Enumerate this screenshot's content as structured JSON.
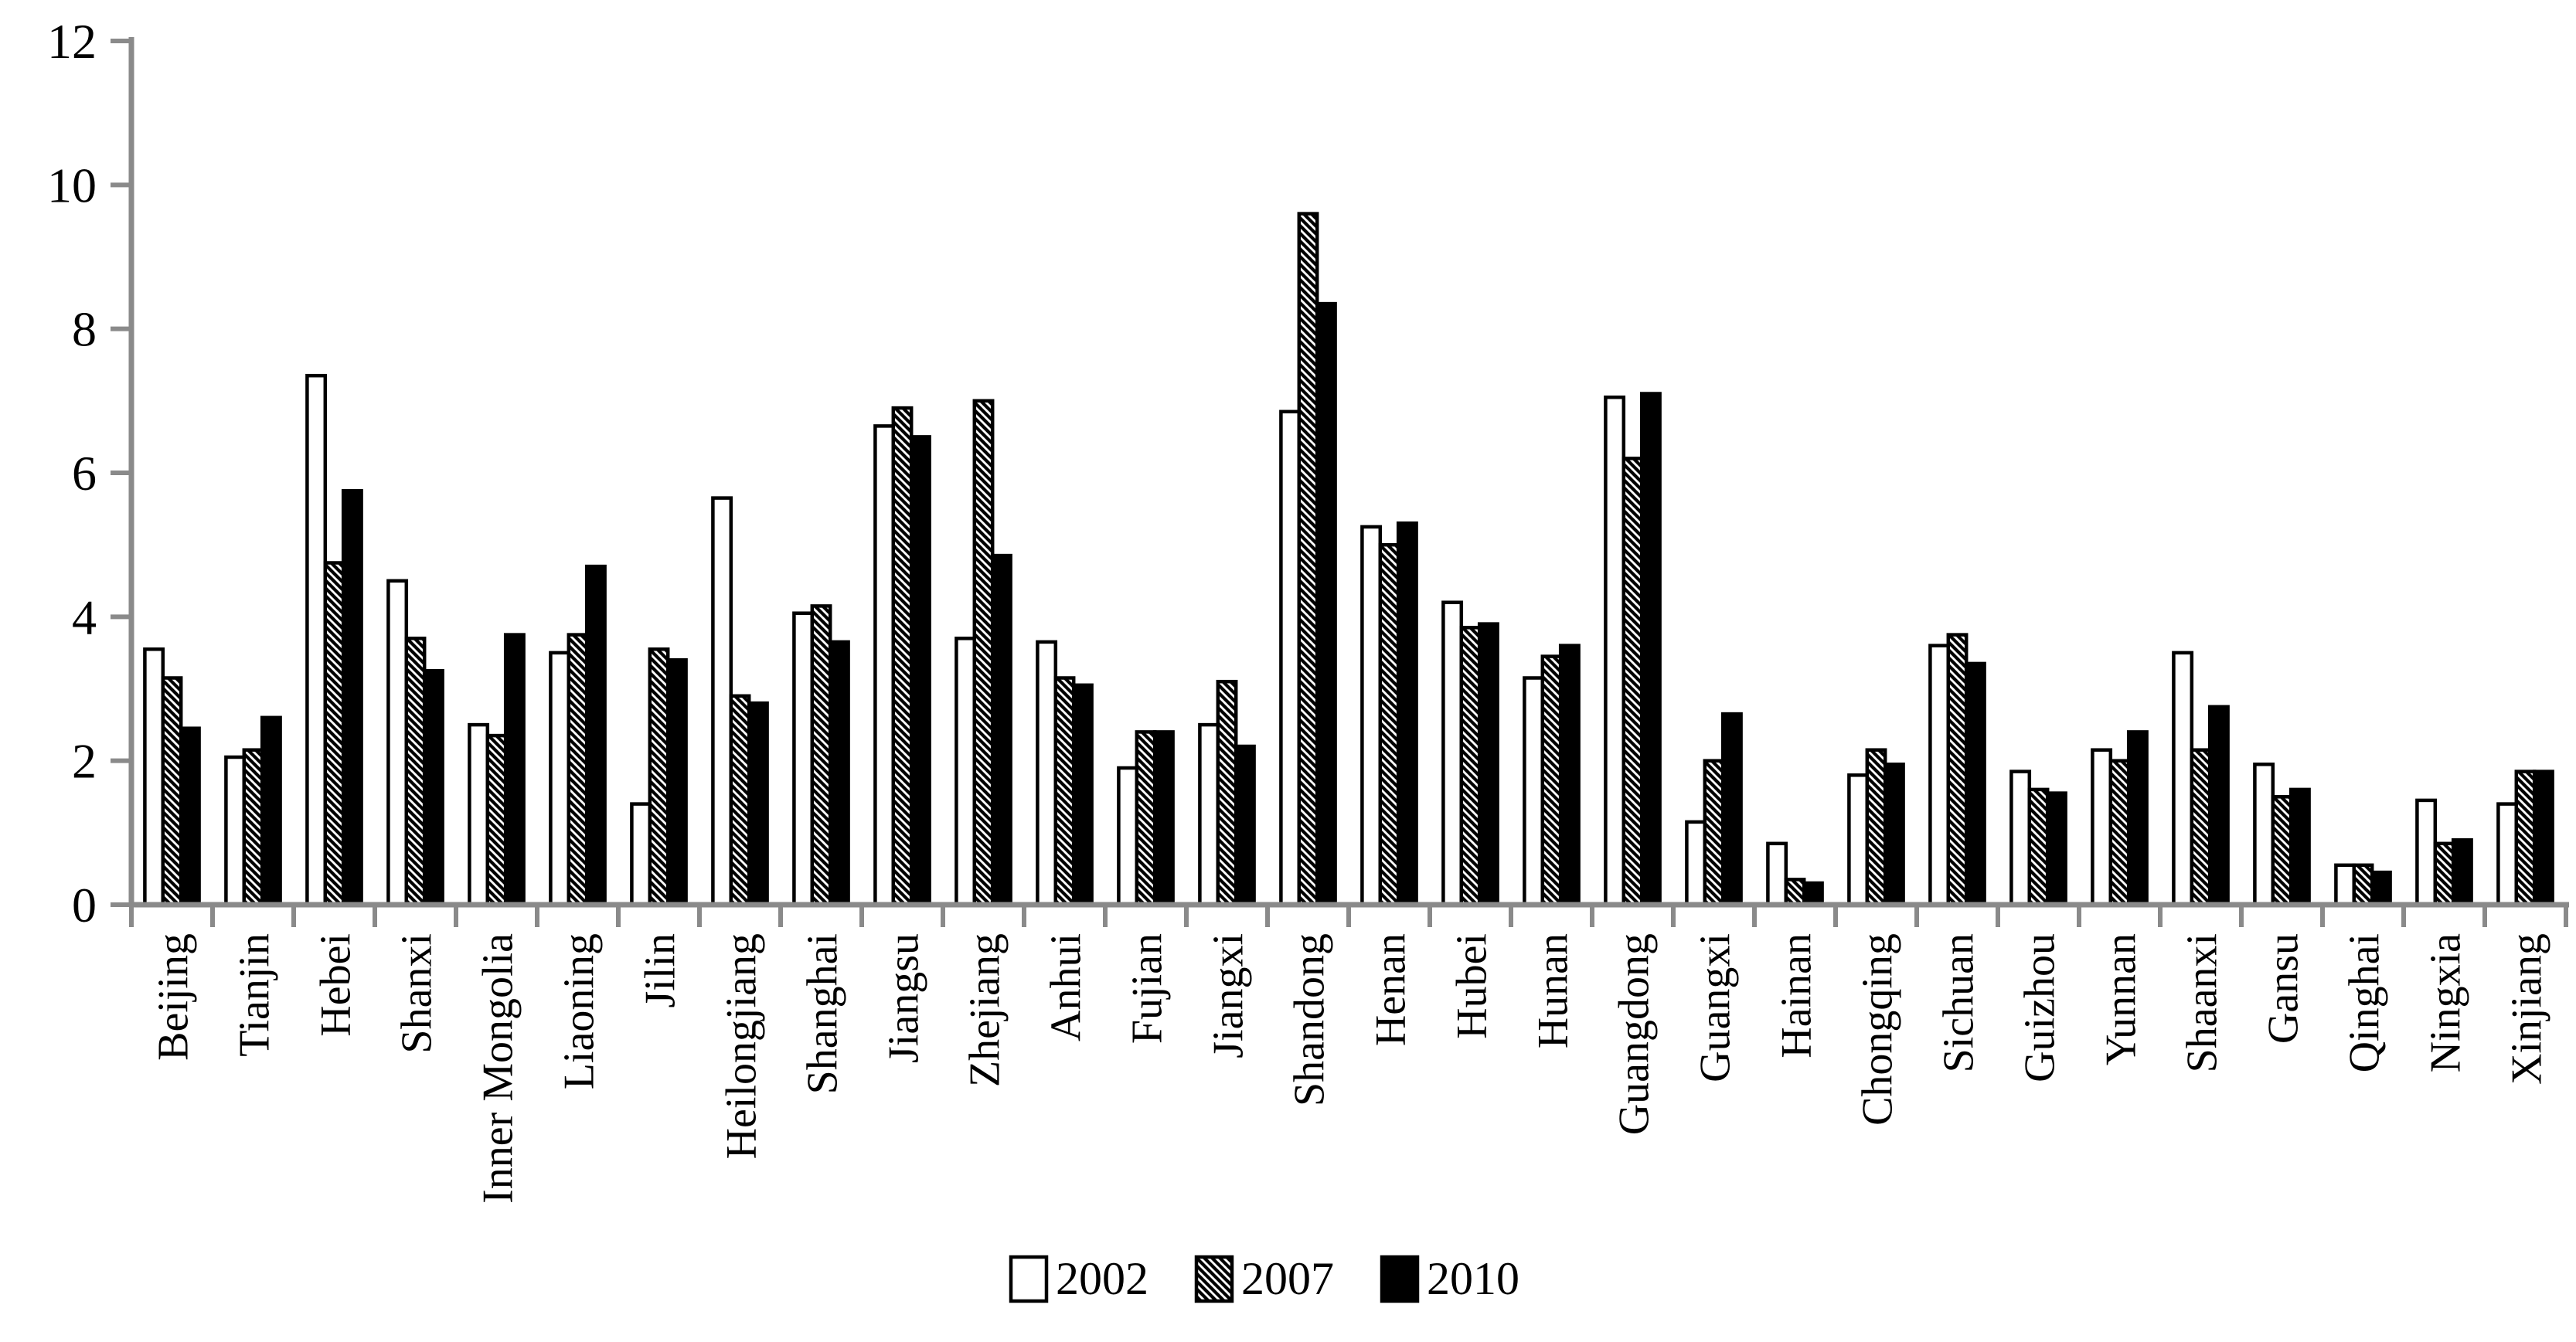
{
  "chart_data": {
    "type": "bar",
    "title": "",
    "xlabel": "",
    "ylabel": "",
    "categories": [
      "Beijing",
      "Tianjin",
      "Hebei",
      "Shanxi",
      "Inner Mongolia",
      "Liaoning",
      "Jilin",
      "Heilongjiang",
      "Shanghai",
      "Jiangsu",
      "Zhejiang",
      "Anhui",
      "Fujian",
      "Jiangxi",
      "Shandong",
      "Henan",
      "Hubei",
      "Hunan",
      "Guangdong",
      "Guangxi",
      "Hainan",
      "Chongqing",
      "Sichuan",
      "Guizhou",
      "Yunnan",
      "Shaanxi",
      "Gansu",
      "Qinghai",
      "Ningxia",
      "Xinjiang"
    ],
    "series": [
      {
        "name": "2002",
        "style": "white",
        "values": [
          3.55,
          2.05,
          7.35,
          4.5,
          2.5,
          3.5,
          1.4,
          5.65,
          4.05,
          6.65,
          3.7,
          3.65,
          1.9,
          2.5,
          6.85,
          5.25,
          4.2,
          3.15,
          7.05,
          1.15,
          0.85,
          1.8,
          3.6,
          1.85,
          2.15,
          3.5,
          1.95,
          0.55,
          1.45,
          1.4
        ]
      },
      {
        "name": "2007",
        "style": "hatched",
        "values": [
          3.15,
          2.15,
          4.75,
          3.7,
          2.35,
          3.75,
          3.55,
          2.9,
          4.15,
          6.9,
          7.0,
          3.15,
          2.4,
          3.1,
          9.6,
          5.0,
          3.85,
          3.45,
          6.2,
          2.0,
          0.35,
          2.15,
          3.75,
          1.6,
          2.0,
          2.15,
          1.5,
          0.55,
          0.85,
          1.85
        ]
      },
      {
        "name": "2010",
        "style": "black",
        "values": [
          2.45,
          2.6,
          5.75,
          3.25,
          3.75,
          4.7,
          3.4,
          2.8,
          3.65,
          6.5,
          4.85,
          3.05,
          2.4,
          2.2,
          8.35,
          5.3,
          3.9,
          3.6,
          7.1,
          2.65,
          0.3,
          1.95,
          3.35,
          1.55,
          2.4,
          2.75,
          1.6,
          0.45,
          0.9,
          1.85
        ]
      }
    ],
    "ylim": [
      0,
      12
    ],
    "ytick_labels": [
      "0",
      "2",
      "4",
      "6",
      "8",
      "10",
      "12"
    ],
    "ytick_step": 2,
    "grid": "off",
    "legend_position": "bottom-center",
    "legend_entries": [
      "2002",
      "2007",
      "2010"
    ],
    "bar_colors": {
      "2002": "#ffffff",
      "2007": "hatch-diagonal",
      "2010": "#000000"
    },
    "axis_color": "#8a8a8a",
    "bar_border_color": "#000000"
  }
}
